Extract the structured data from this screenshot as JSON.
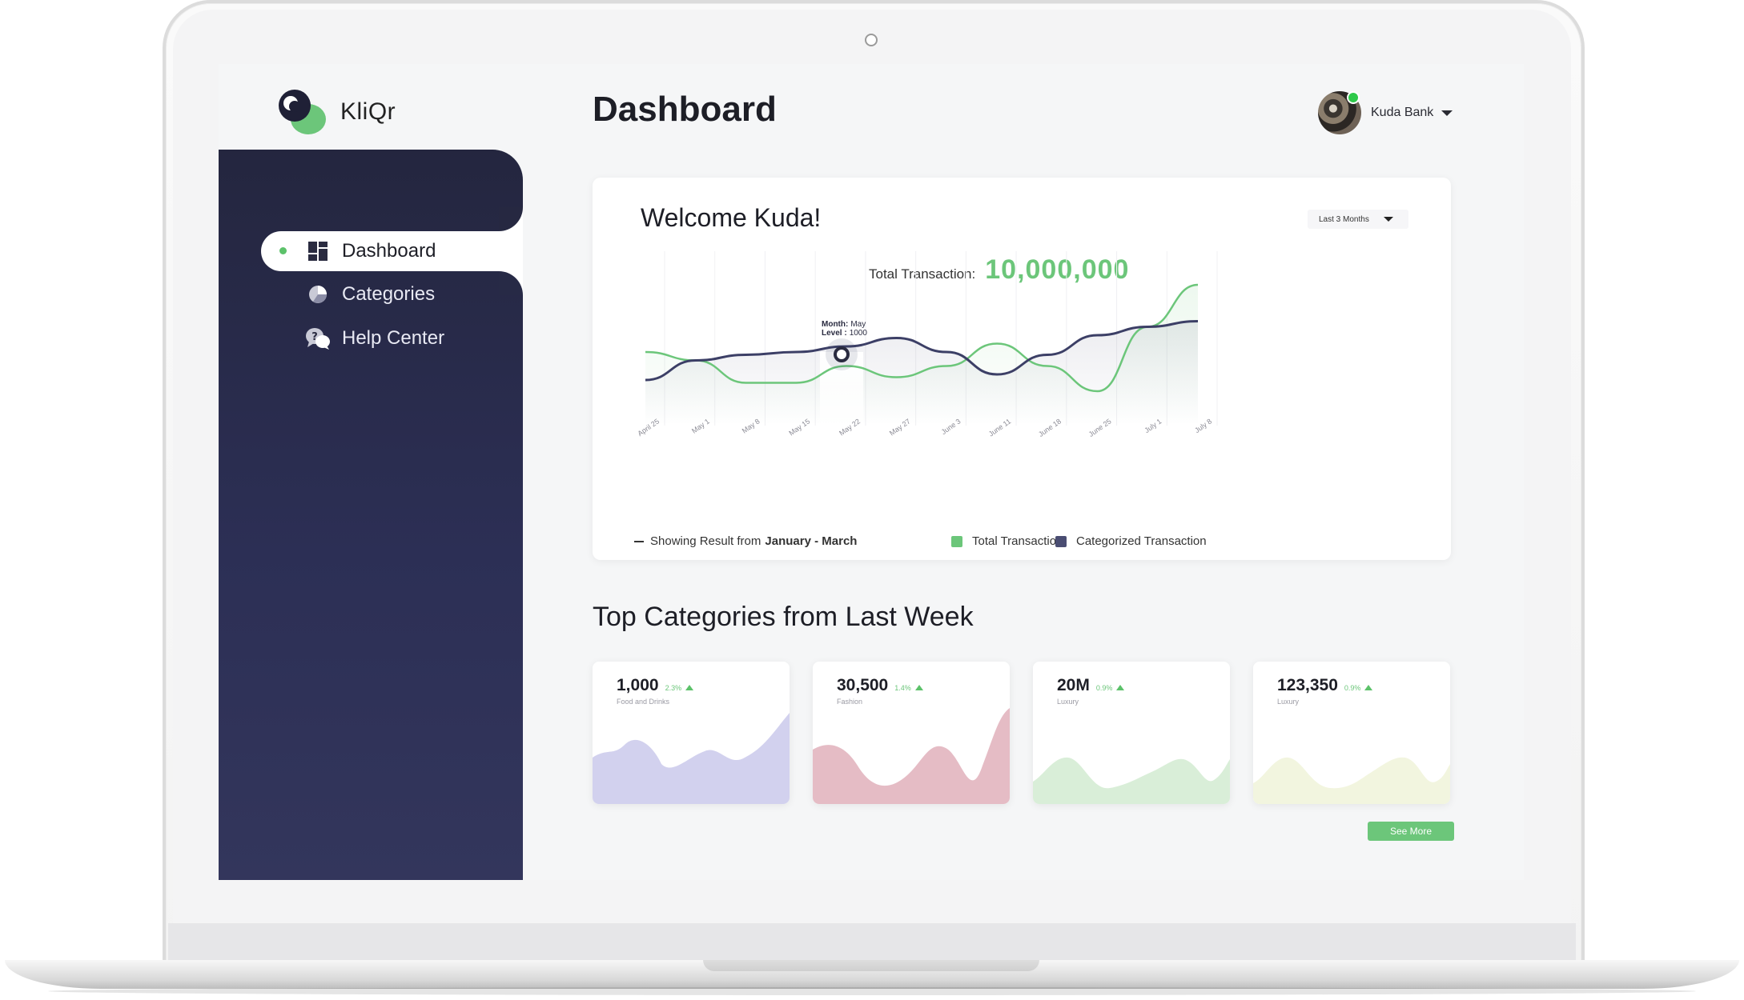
{
  "app": {
    "name": "KliQr"
  },
  "sidebar": {
    "items": [
      {
        "label": "Dashboard",
        "icon": "dashboard-icon",
        "active": true
      },
      {
        "label": "Categories",
        "icon": "pie-chart-icon",
        "active": false
      },
      {
        "label": "Help Center",
        "icon": "help-chat-icon",
        "active": false
      }
    ]
  },
  "header": {
    "title": "Dashboard",
    "user": {
      "name": "Kuda Bank",
      "online": true
    }
  },
  "overview": {
    "greeting": "Welcome Kuda!",
    "range": "Last 3 Months",
    "total_label": "Total Transaction:",
    "total_value": "10,000,000",
    "tooltip": {
      "month_label": "Month:",
      "month": "May",
      "level_label": "Level :",
      "level": "1000"
    },
    "legend": {
      "showing_prefix": "Showing Result from",
      "showing_range": "January - March",
      "total": "Total Transaction",
      "categorized": "Categorized Transaction"
    }
  },
  "colors": {
    "accent_green": "#6cc67a",
    "navy": "#3c3f66",
    "sidebar_top": "#24263f"
  },
  "chart_data": {
    "type": "line",
    "categories": [
      "April 25",
      "May 1",
      "May 8",
      "May 15",
      "May 22",
      "May 27",
      "June 3",
      "June 11",
      "June 18",
      "June 25",
      "July 1",
      "July 8"
    ],
    "series": [
      {
        "name": "Total Transaction",
        "color": "#6cc67a",
        "values": [
          1.0,
          0.85,
          0.45,
          0.45,
          0.75,
          0.55,
          0.75,
          1.15,
          0.75,
          0.3,
          1.45,
          2.2
        ]
      },
      {
        "name": "Categorized Transaction",
        "color": "#3c3f66",
        "values": [
          0.5,
          0.85,
          0.95,
          1.0,
          1.1,
          1.25,
          1.0,
          0.6,
          0.95,
          1.3,
          1.45,
          1.55
        ]
      }
    ],
    "highlight": {
      "category": "May 22",
      "label": "Month: May, Level: 1000"
    },
    "grid": true
  },
  "top_categories": {
    "title": "Top Categories from Last Week",
    "cards": [
      {
        "value": "1,000",
        "change": "2.3%",
        "label": "Food and Drinks",
        "color": "#d2d1ee"
      },
      {
        "value": "30,500",
        "change": "1.4%",
        "label": "Fashion",
        "color": "#e5bcc5"
      },
      {
        "value": "20M",
        "change": "0.9%",
        "label": "Luxury",
        "color": "#d9eed8"
      },
      {
        "value": "123,350",
        "change": "0.9%",
        "label": "Luxury",
        "color": "#f2f5df"
      }
    ],
    "see_more": "See More"
  }
}
